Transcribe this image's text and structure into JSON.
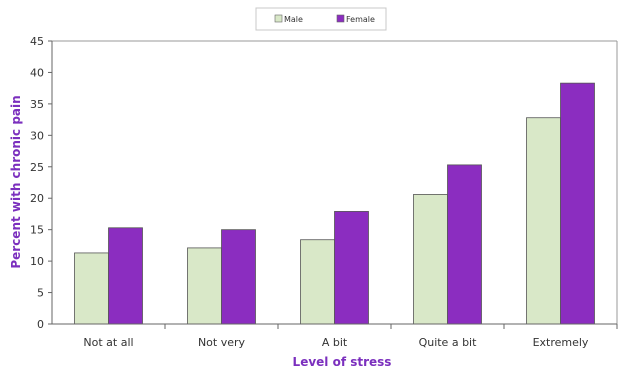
{
  "chart_data": {
    "type": "bar",
    "xlabel": "Level of stress",
    "ylabel": "Percent with chronic pain",
    "categories": [
      "Not at all",
      "Not very",
      "A bit",
      "Quite a bit",
      "Extremely"
    ],
    "series": [
      {
        "name": "Male",
        "values": [
          11.3,
          12.1,
          13.4,
          20.6,
          32.8
        ],
        "color": "#d9e8c8"
      },
      {
        "name": "Female",
        "values": [
          15.3,
          15.0,
          17.9,
          25.3,
          38.3
        ],
        "color": "#8b2dc0"
      }
    ],
    "ylim": [
      0,
      45
    ],
    "yticks": [
      0,
      5,
      10,
      15,
      20,
      25,
      30,
      35,
      40,
      45
    ],
    "legend_position": "top-center",
    "grid": false,
    "axis_title_color": "#7b2fbe"
  }
}
